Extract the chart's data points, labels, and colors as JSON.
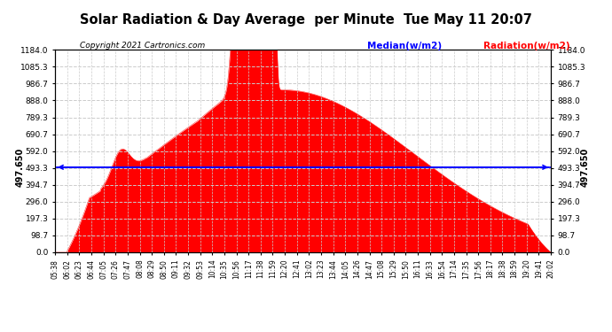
{
  "title": "Solar Radiation & Day Average  per Minute  Tue May 11 20:07",
  "copyright": "Copyright 2021 Cartronics.com",
  "median_value": 497.65,
  "y_max": 1184.0,
  "y_min": 0.0,
  "y_ticks": [
    0.0,
    98.7,
    197.3,
    296.0,
    394.7,
    493.3,
    592.0,
    690.7,
    789.3,
    888.0,
    986.7,
    1085.3,
    1184.0
  ],
  "bg_color": "#ffffff",
  "fill_color": "#ff0000",
  "median_color": "#0000ff",
  "grid_color": "#cccccc",
  "x_tick_labels": [
    "05:38",
    "06:02",
    "06:23",
    "06:44",
    "07:05",
    "07:26",
    "07:47",
    "08:08",
    "08:29",
    "08:50",
    "09:11",
    "09:32",
    "09:53",
    "10:14",
    "10:35",
    "10:56",
    "11:17",
    "11:38",
    "11:59",
    "12:20",
    "12:41",
    "13:02",
    "13:23",
    "13:44",
    "14:05",
    "14:26",
    "14:47",
    "15:08",
    "15:29",
    "15:50",
    "16:11",
    "16:33",
    "16:54",
    "17:14",
    "17:35",
    "17:56",
    "18:17",
    "18:38",
    "18:59",
    "19:20",
    "19:41",
    "20:02"
  ]
}
